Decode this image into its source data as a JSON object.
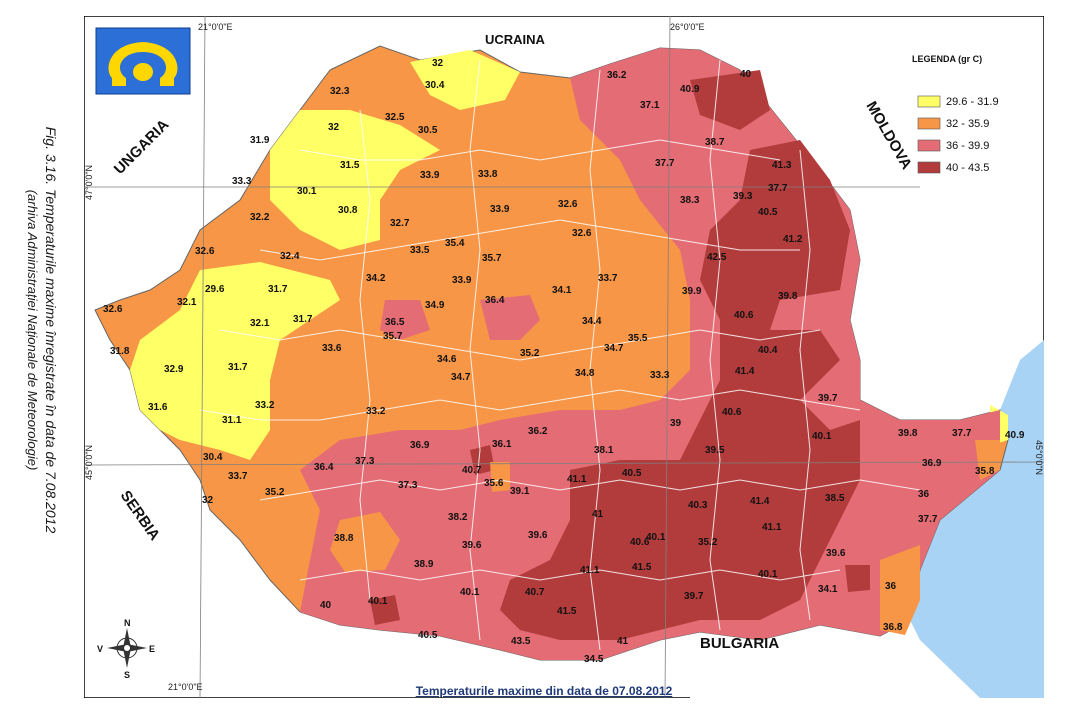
{
  "caption": {
    "line1": "Fig. 3.16. Temperaturile maxime înregistrate în data de 7.08.2012",
    "line2": "(arhiva Administrației Naționale de Meteorologie)"
  },
  "countries": {
    "north": "UCRAINA",
    "west": "UNGARIA",
    "east": "MOLDOVA",
    "southwest": "SERBIA",
    "south": "BULGARIA"
  },
  "coordinates": {
    "lon_top": "21°0'0\"E",
    "lon_top_right": "26°0'0\"E",
    "lon_bottom": "21°0'0\"E",
    "lat_left_47": "47°0'0\"N",
    "lat_left_45": "45°0'0\"N",
    "lat_right_45": "45°0'0\"N"
  },
  "legend": {
    "title": "LEGENDA (gr C)",
    "items": [
      {
        "label": "29.6 - 31.9",
        "color": "#ffff66"
      },
      {
        "label": "32 - 35.9",
        "color": "#f79646"
      },
      {
        "label": "36 - 39.9",
        "color": "#e46c74"
      },
      {
        "label": "40 - 43.5",
        "color": "#b23c3c"
      }
    ]
  },
  "compass": {
    "n": "N",
    "s": "S",
    "e": "E",
    "v": "V"
  },
  "footer": "Temperaturile maxime din data de 07.08.2012",
  "colors": {
    "sea": "#a9d3f5",
    "outside": "#ffffff",
    "border_county": "#ffffff",
    "grid": "#7f7f7f"
  },
  "values": [
    "32",
    "30.4",
    "32.3",
    "32.5",
    "30.5",
    "32",
    "31.9",
    "31.5",
    "30.1",
    "30.8",
    "33.3",
    "33.9",
    "33.8",
    "33.9",
    "32.6",
    "32.2",
    "32.7",
    "32.6",
    "32.4",
    "33.5",
    "35.4",
    "35.7",
    "32.6",
    "34.2",
    "33.9",
    "34.1",
    "33.7",
    "29.6",
    "31.7",
    "32.1",
    "32.6",
    "34.9",
    "36.4",
    "31.7",
    "36.5",
    "35.7",
    "34.4",
    "32.1",
    "33.6",
    "35.5",
    "34.7",
    "31.8",
    "32.9",
    "35.2",
    "34.6",
    "31.7",
    "34.7",
    "34.8",
    "33.3",
    "33.2",
    "31.6",
    "31.1",
    "33.2",
    "30.4",
    "33.7",
    "35.2",
    "32",
    "36.2",
    "37.1",
    "40.9",
    "40",
    "38.7",
    "37.7",
    "41.3",
    "38.3",
    "39.3",
    "37.7",
    "40.5",
    "41.2",
    "42.5",
    "39.9",
    "39.8",
    "40.6",
    "40.4",
    "41.4",
    "40.6",
    "39.7",
    "39",
    "39.5",
    "40.1",
    "39.8",
    "37.7",
    "36.9",
    "40.9",
    "35.8",
    "36.9",
    "36.1",
    "36.2",
    "38.1",
    "36.4",
    "37.3",
    "37.3",
    "40.7",
    "35.6",
    "39.1",
    "41.1",
    "40.5",
    "41",
    "40.3",
    "41.4",
    "41.1",
    "38.5",
    "36",
    "37.7",
    "38.2",
    "39.6",
    "39.6",
    "40.1",
    "40.6",
    "41.5",
    "41.1",
    "40.1",
    "39.6",
    "34.1",
    "36",
    "35.2",
    "38.8",
    "38.9",
    "40",
    "40.1",
    "40.1",
    "40.7",
    "41.5",
    "39.7",
    "40.5",
    "43.5",
    "41",
    "34.5",
    "36.8"
  ]
}
